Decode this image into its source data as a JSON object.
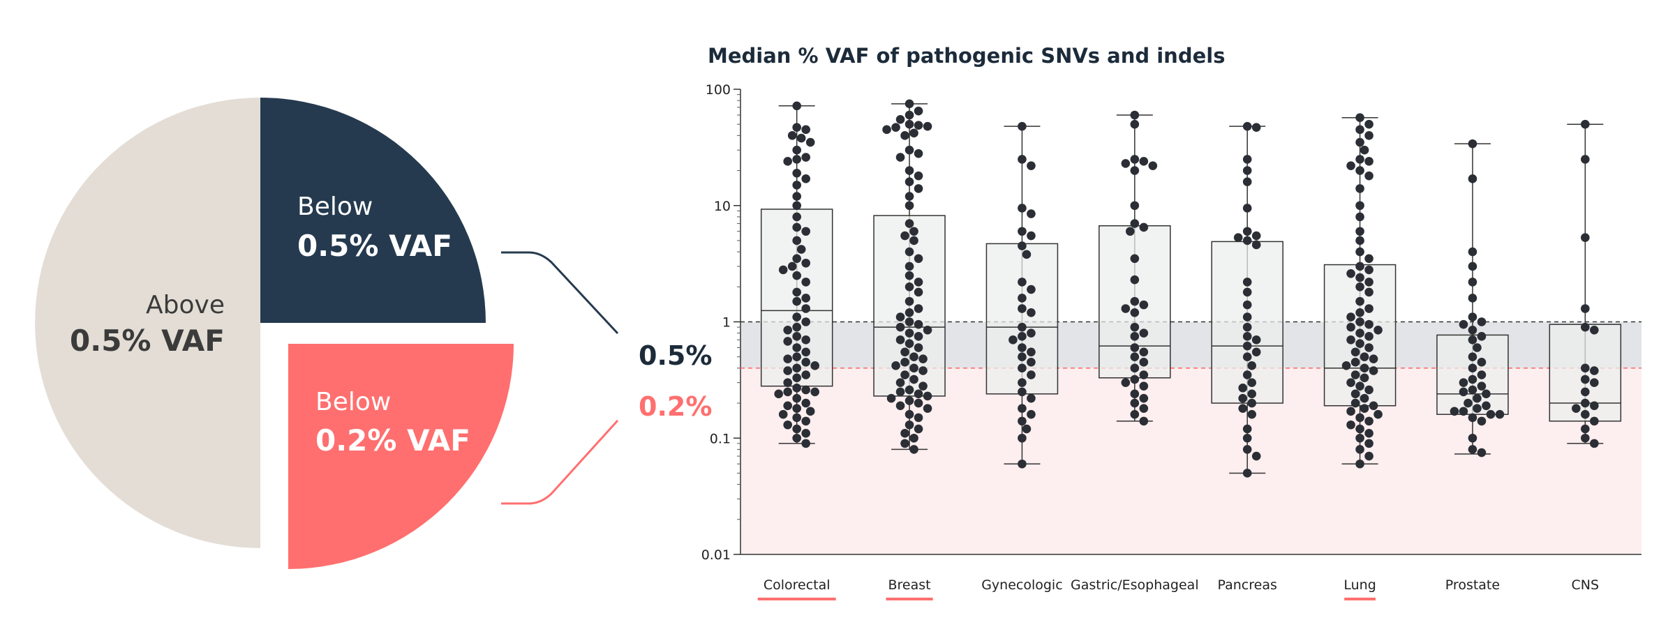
{
  "colors": {
    "navy": "#253a4f",
    "coral": "#ff6f6f",
    "beige": "#e3ddd5",
    "box_fill": "#eceeed",
    "dot": "#2b2f35",
    "grey_band": "#e2e4e7",
    "pink_band": "#fdeeef"
  },
  "pie": {
    "above": {
      "line1": "Above",
      "line2": "0.5% VAF",
      "fraction": 0.5
    },
    "below_05": {
      "line1": "Below",
      "line2": "0.5% VAF",
      "fraction": 0.25
    },
    "below_02": {
      "line1": "Below",
      "line2": "0.2% VAF",
      "fraction": 0.25
    }
  },
  "callouts": {
    "threshold_05": "0.5%",
    "threshold_02": "0.2%"
  },
  "chart_data": {
    "type": "box",
    "title": "Median % VAF of pathogenic SNVs and indels",
    "y_scale": "log",
    "ylim": [
      0.01,
      100
    ],
    "y_ticks": [
      "0.01",
      "0.1",
      "1",
      "10",
      "100"
    ],
    "reference_lines": [
      {
        "value": 1,
        "style": "dashed",
        "color": "#333333"
      },
      {
        "value": 0.4,
        "style": "dashed",
        "color": "#ff6f6f"
      }
    ],
    "categories": [
      {
        "label": "Colorectal",
        "underlined": true,
        "whisker_low": 0.09,
        "q1": 0.28,
        "median": 1.25,
        "q3": 9.3,
        "whisker_high": 72,
        "points": [
          72,
          47,
          45,
          40,
          38,
          35,
          30,
          26,
          25,
          24,
          19,
          17,
          15,
          12,
          10,
          8,
          6.5,
          6,
          5,
          4.2,
          3.5,
          3.2,
          3,
          2.8,
          2.5,
          2.2,
          1.8,
          1.6,
          1.5,
          1.3,
          1.1,
          1.0,
          0.9,
          0.85,
          0.75,
          0.7,
          0.68,
          0.6,
          0.55,
          0.5,
          0.48,
          0.45,
          0.42,
          0.4,
          0.38,
          0.35,
          0.33,
          0.3,
          0.27,
          0.26,
          0.25,
          0.25,
          0.24,
          0.22,
          0.2,
          0.19,
          0.18,
          0.17,
          0.16,
          0.15,
          0.14,
          0.13,
          0.12,
          0.11,
          0.1,
          0.09
        ]
      },
      {
        "label": "Breast",
        "underlined": true,
        "whisker_low": 0.08,
        "q1": 0.23,
        "median": 0.9,
        "q3": 8.2,
        "whisker_high": 75,
        "points": [
          75,
          65,
          60,
          55,
          50,
          49,
          48,
          47,
          45,
          42,
          40,
          30,
          28,
          26,
          20,
          18,
          16,
          14,
          12,
          10,
          7,
          6,
          5.5,
          5,
          4,
          3.5,
          3,
          2.5,
          2.2,
          2,
          1.8,
          1.5,
          1.3,
          1.2,
          1.1,
          1.0,
          0.95,
          0.9,
          0.85,
          0.8,
          0.75,
          0.7,
          0.65,
          0.6,
          0.55,
          0.5,
          0.48,
          0.45,
          0.42,
          0.4,
          0.38,
          0.35,
          0.32,
          0.3,
          0.28,
          0.26,
          0.25,
          0.24,
          0.23,
          0.22,
          0.21,
          0.2,
          0.19,
          0.18,
          0.16,
          0.15,
          0.13,
          0.12,
          0.11,
          0.1,
          0.09,
          0.08
        ]
      },
      {
        "label": "Gynecologic",
        "underlined": false,
        "whisker_low": 0.06,
        "q1": 0.24,
        "median": 0.9,
        "q3": 4.7,
        "whisker_high": 48,
        "points": [
          48,
          25,
          22,
          9.5,
          8.5,
          6,
          5.5,
          4.5,
          3.8,
          2.2,
          1.9,
          1.6,
          1.3,
          1.2,
          0.9,
          0.8,
          0.75,
          0.7,
          0.6,
          0.55,
          0.5,
          0.45,
          0.4,
          0.35,
          0.3,
          0.25,
          0.22,
          0.18,
          0.16,
          0.14,
          0.12,
          0.1,
          0.06
        ]
      },
      {
        "label": "Gastric/Esophageal",
        "underlined": false,
        "whisker_low": 0.14,
        "q1": 0.33,
        "median": 0.62,
        "q3": 6.7,
        "whisker_high": 60,
        "points": [
          60,
          50,
          25,
          24,
          23,
          22,
          20,
          10,
          7,
          6.5,
          6,
          3.5,
          2.3,
          1.5,
          1.4,
          1.3,
          1.2,
          0.9,
          0.8,
          0.75,
          0.6,
          0.55,
          0.5,
          0.45,
          0.4,
          0.35,
          0.32,
          0.3,
          0.28,
          0.24,
          0.22,
          0.2,
          0.18,
          0.16,
          0.14
        ]
      },
      {
        "label": "Pancreas",
        "underlined": false,
        "whisker_low": 0.05,
        "q1": 0.2,
        "median": 0.62,
        "q3": 4.9,
        "whisker_high": 48,
        "points": [
          48,
          47,
          25,
          20,
          16,
          9.5,
          6,
          5.5,
          5.3,
          5,
          4.6,
          2.2,
          1.8,
          1.4,
          1.1,
          0.9,
          0.75,
          0.7,
          0.62,
          0.55,
          0.5,
          0.42,
          0.35,
          0.3,
          0.27,
          0.24,
          0.22,
          0.2,
          0.18,
          0.16,
          0.12,
          0.1,
          0.08,
          0.07,
          0.05
        ]
      },
      {
        "label": "Lung",
        "underlined": true,
        "whisker_low": 0.06,
        "q1": 0.19,
        "median": 0.4,
        "q3": 3.1,
        "whisker_high": 57,
        "points": [
          57,
          50,
          45,
          40,
          35,
          30,
          25,
          24,
          22,
          20,
          18,
          14,
          10,
          8,
          6,
          5,
          4,
          3.5,
          3,
          2.8,
          2.6,
          2.4,
          2.2,
          2,
          1.8,
          1.5,
          1.3,
          1.2,
          1.1,
          1.0,
          0.95,
          0.9,
          0.85,
          0.8,
          0.75,
          0.7,
          0.65,
          0.6,
          0.55,
          0.5,
          0.48,
          0.45,
          0.42,
          0.4,
          0.38,
          0.35,
          0.33,
          0.3,
          0.28,
          0.26,
          0.24,
          0.22,
          0.2,
          0.19,
          0.18,
          0.17,
          0.16,
          0.15,
          0.14,
          0.13,
          0.12,
          0.11,
          0.1,
          0.09,
          0.08,
          0.07,
          0.06
        ]
      },
      {
        "label": "Prostate",
        "underlined": false,
        "whisker_low": 0.073,
        "q1": 0.16,
        "median": 0.24,
        "q3": 0.77,
        "whisker_high": 34,
        "points": [
          34,
          17,
          4,
          3,
          2.2,
          1.6,
          1.1,
          1.0,
          0.95,
          0.85,
          0.75,
          0.7,
          0.6,
          0.5,
          0.45,
          0.4,
          0.35,
          0.32,
          0.3,
          0.28,
          0.26,
          0.25,
          0.24,
          0.22,
          0.2,
          0.19,
          0.18,
          0.17,
          0.17,
          0.16,
          0.16,
          0.15,
          0.14,
          0.1,
          0.08,
          0.075
        ]
      },
      {
        "label": "CNS",
        "underlined": false,
        "whisker_low": 0.09,
        "q1": 0.14,
        "median": 0.2,
        "q3": 0.95,
        "whisker_high": 50,
        "points": [
          50,
          25,
          5.3,
          1.3,
          0.9,
          0.85,
          0.4,
          0.38,
          0.32,
          0.3,
          0.25,
          0.2,
          0.19,
          0.18,
          0.16,
          0.14,
          0.12,
          0.1,
          0.09
        ]
      }
    ]
  }
}
